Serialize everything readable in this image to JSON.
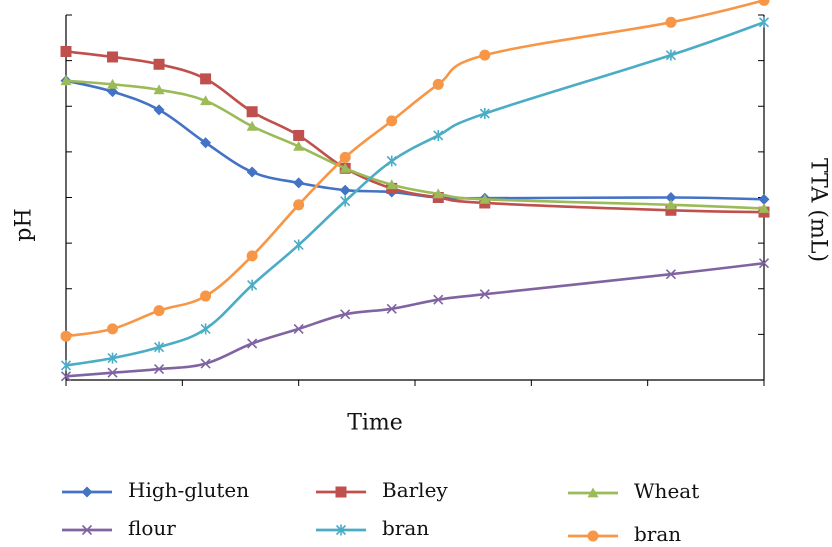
{
  "chart_data": {
    "type": "line",
    "xlabel": "Time",
    "ylabel_left": "pH",
    "ylabel_right": "TTA (mL)",
    "x": [
      0,
      1,
      2,
      3,
      4,
      5,
      6,
      7,
      8,
      9,
      13,
      15
    ],
    "y_range": [
      0,
      10
    ],
    "grid": false,
    "legend_position": "bottom",
    "series": [
      {
        "name": "High-gluten",
        "axis": "left",
        "color": "#4472c4",
        "marker": "diamond",
        "values": [
          8.2,
          7.9,
          7.4,
          6.5,
          5.7,
          5.4,
          5.2,
          5.15,
          5.0,
          4.98,
          5.0,
          4.95
        ]
      },
      {
        "name": "Barley",
        "axis": "left",
        "color": "#c0504d",
        "marker": "square",
        "values": [
          9.0,
          8.85,
          8.65,
          8.25,
          7.35,
          6.7,
          5.8,
          5.25,
          5.0,
          4.85,
          4.65,
          4.6
        ]
      },
      {
        "name": "Wheat",
        "axis": "left",
        "color": "#9bbb59",
        "marker": "triangle",
        "values": [
          8.2,
          8.1,
          7.95,
          7.65,
          6.95,
          6.4,
          5.8,
          5.35,
          5.1,
          4.95,
          4.8,
          4.7
        ]
      },
      {
        "name": "flour",
        "axis": "right",
        "color": "#8064a2",
        "marker": "x",
        "values": [
          0.1,
          0.2,
          0.3,
          0.45,
          1.0,
          1.4,
          1.8,
          1.95,
          2.2,
          2.35,
          2.9,
          3.2
        ]
      },
      {
        "name": "bran",
        "axis": "right",
        "color": "#4bacc6",
        "marker": "star",
        "values": [
          0.4,
          0.6,
          0.9,
          1.4,
          2.6,
          3.7,
          4.9,
          6.0,
          6.7,
          7.3,
          8.9,
          9.8
        ]
      },
      {
        "name": "bran",
        "axis": "right",
        "color": "#f79646",
        "marker": "circle",
        "values": [
          1.2,
          1.4,
          1.9,
          2.3,
          3.4,
          4.8,
          6.1,
          7.1,
          8.1,
          8.9,
          9.8,
          10.4
        ]
      }
    ]
  }
}
